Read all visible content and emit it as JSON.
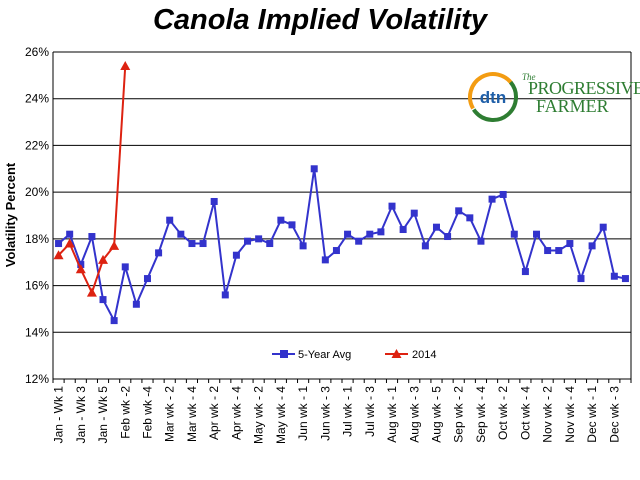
{
  "title": "Canola Implied Volatility",
  "logo": {
    "dtn_text": "dtn",
    "the_text": "The",
    "line1": "PROGRESSIVE",
    "line2": "FARMER"
  },
  "colors": {
    "five_year": "#3333cc",
    "y2014": "#dd2211",
    "grid": "#000000",
    "logo_green": "#2e7d32",
    "logo_orange": "#f39c12",
    "logo_blue": "#1f5fa8"
  },
  "chart_data": {
    "type": "line",
    "title": "Canola Implied Volatility",
    "xlabel": "",
    "ylabel": "Volatility Percent",
    "ylim": [
      12,
      26
    ],
    "y_ticks": [
      "12%",
      "14%",
      "16%",
      "18%",
      "20%",
      "22%",
      "24%",
      "26%"
    ],
    "grid": true,
    "legend_placement": "bottom-center",
    "x_tick_labels": [
      "Jan - Wk 1",
      "Jan - Wk 3",
      "Jan - Wk 5",
      "Feb wk -2",
      "Feb wk -4",
      "Mar wk - 2",
      "Mar wk - 4",
      "Apr wk - 2",
      "Apr wk - 4",
      "May wk - 2",
      "May wk - 4",
      "Jun wk - 1",
      "Jun wk - 3",
      "Jul wk - 1",
      "Jul wk - 3",
      "Aug wk - 1",
      "Aug wk - 3",
      "Aug wk - 5",
      "Sep wk - 2",
      "Sep wk - 4",
      "Oct wk - 2",
      "Oct wk - 4",
      "Nov wk - 2",
      "Nov wk - 4",
      "Dec wk - 1",
      "Dec wk - 3"
    ],
    "series": [
      {
        "name": "5-Year Avg",
        "marker": "square",
        "color": "#3333cc",
        "values": [
          17.8,
          18.2,
          16.9,
          18.1,
          15.4,
          14.5,
          16.8,
          15.2,
          16.3,
          17.4,
          18.8,
          18.2,
          17.8,
          17.8,
          19.6,
          15.6,
          17.3,
          17.9,
          18.0,
          17.8,
          18.8,
          18.6,
          17.7,
          21.0,
          17.1,
          17.5,
          18.2,
          17.9,
          18.2,
          18.3,
          19.4,
          18.4,
          19.1,
          17.7,
          18.5,
          18.1,
          19.2,
          18.9,
          17.9,
          19.7,
          19.9,
          18.2,
          16.6,
          18.2,
          17.5,
          17.5,
          17.8,
          16.3,
          17.7,
          18.5,
          16.4,
          16.3
        ]
      },
      {
        "name": "2014",
        "marker": "triangle",
        "color": "#dd2211",
        "values": [
          17.3,
          17.8,
          16.7,
          15.7,
          17.1,
          17.7,
          25.4
        ]
      }
    ]
  }
}
